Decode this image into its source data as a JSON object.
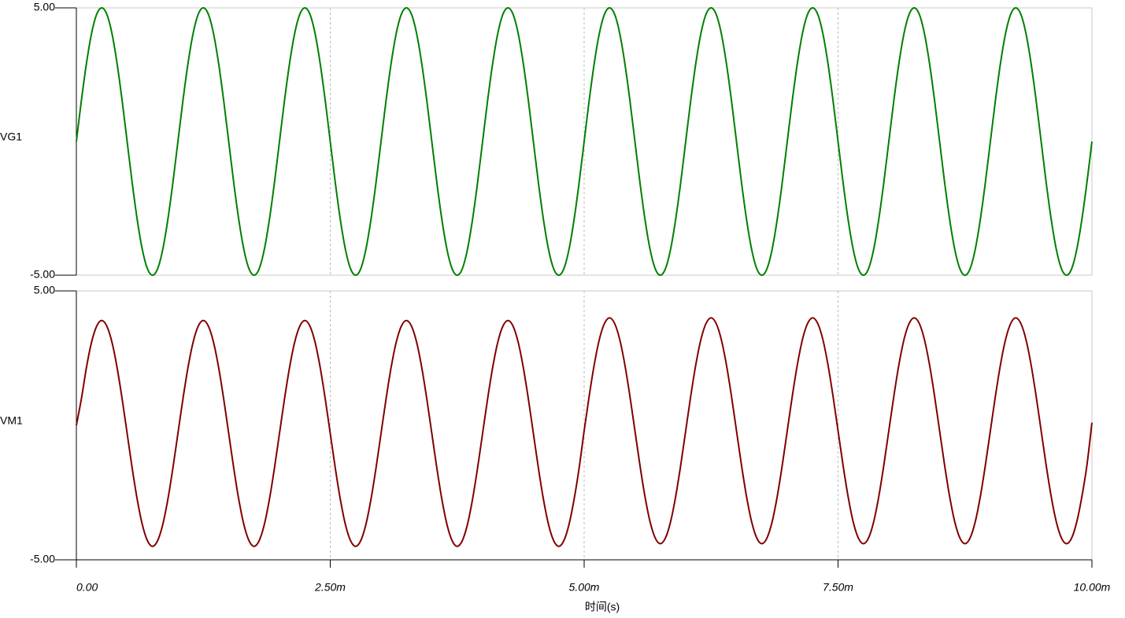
{
  "chart_data": [
    {
      "type": "line",
      "x": [
        0,
        5e-05,
        0.0001,
        0.00015,
        0.0002,
        0.00025,
        0.0003,
        0.00035,
        0.0004,
        0.00045,
        0.0005,
        0.00055,
        0.0006,
        0.00065,
        0.0007,
        0.00075,
        0.0008,
        0.00085,
        0.0009,
        0.00095,
        0.001,
        0.00105,
        0.0011,
        0.00115,
        0.0012,
        0.00125,
        0.0013,
        0.00135,
        0.0014,
        0.00145,
        0.0015,
        0.00155,
        0.0016,
        0.00165,
        0.0017,
        0.00175,
        0.0018,
        0.00185,
        0.0019,
        0.00195,
        0.002,
        0.00205,
        0.0021,
        0.00215,
        0.0022,
        0.00225,
        0.0023,
        0.00235,
        0.0024,
        0.00245,
        0.0025,
        0.00255,
        0.0026,
        0.00265,
        0.0027,
        0.00275,
        0.0028,
        0.00285,
        0.0029,
        0.00295,
        0.003,
        0.00305,
        0.0031,
        0.00315,
        0.0032,
        0.00325,
        0.0033,
        0.00335,
        0.0034,
        0.00345,
        0.0035,
        0.00355,
        0.0036,
        0.00365,
        0.0037,
        0.00375,
        0.0038,
        0.00385,
        0.0039,
        0.00395,
        0.004,
        0.00405,
        0.0041,
        0.00415,
        0.0042,
        0.00425,
        0.0043,
        0.00435,
        0.0044,
        0.00445,
        0.0045,
        0.00455,
        0.0046,
        0.00465,
        0.0047,
        0.00475,
        0.0048,
        0.00485,
        0.0049,
        0.00495,
        0.005,
        0.00505,
        0.0051,
        0.00515,
        0.0052,
        0.00525,
        0.0053,
        0.00535,
        0.0054,
        0.00545,
        0.0055,
        0.00555,
        0.0056,
        0.00565,
        0.0057,
        0.00575,
        0.0058,
        0.00585,
        0.0059,
        0.00595,
        0.006,
        0.00605,
        0.0061,
        0.00615,
        0.0062,
        0.00625,
        0.0063,
        0.00635,
        0.0064,
        0.00645,
        0.0065,
        0.00655,
        0.0066,
        0.00665,
        0.0067,
        0.00675,
        0.0068,
        0.00685,
        0.0069,
        0.00695,
        0.007,
        0.00705,
        0.0071,
        0.00715,
        0.0072,
        0.00725,
        0.0073,
        0.00735,
        0.0074,
        0.00745,
        0.0075,
        0.00755,
        0.0076,
        0.00765,
        0.0077,
        0.00775,
        0.0078,
        0.00785,
        0.0079,
        0.00795,
        0.008,
        0.00805,
        0.0081,
        0.00815,
        0.0082,
        0.00825,
        0.0083,
        0.00835,
        0.0084,
        0.00845,
        0.0085,
        0.00855,
        0.0086,
        0.00865,
        0.0087,
        0.00875,
        0.0088,
        0.00885,
        0.0089,
        0.00895,
        0.009,
        0.00905,
        0.0091,
        0.00915,
        0.0092,
        0.00925,
        0.0093,
        0.00935,
        0.0094,
        0.00945,
        0.0095,
        0.00955,
        0.0096,
        0.00965,
        0.0097,
        0.00975,
        0.0098,
        0.00985,
        0.0099,
        0.00995,
        0.01
      ],
      "series": [
        {
          "name": "VG1",
          "color": "#008000",
          "values": [
            0,
            1.55,
            2.94,
            4.05,
            4.76,
            5,
            4.76,
            4.05,
            2.94,
            1.55,
            0,
            -1.55,
            -2.94,
            -4.05,
            -4.76,
            -5,
            -4.76,
            -4.05,
            -2.94,
            -1.55,
            0,
            1.55,
            2.94,
            4.05,
            4.76,
            5,
            4.76,
            4.05,
            2.94,
            1.55,
            0,
            -1.55,
            -2.94,
            -4.05,
            -4.76,
            -5,
            -4.76,
            -4.05,
            -2.94,
            -1.55,
            0,
            1.55,
            2.94,
            4.05,
            4.76,
            5,
            4.76,
            4.05,
            2.94,
            1.55,
            0,
            -1.55,
            -2.94,
            -4.05,
            -4.76,
            -5,
            -4.76,
            -4.05,
            -2.94,
            -1.55,
            0,
            1.55,
            2.94,
            4.05,
            4.76,
            5,
            4.76,
            4.05,
            2.94,
            1.55,
            0,
            -1.55,
            -2.94,
            -4.05,
            -4.76,
            -5,
            -4.76,
            -4.05,
            -2.94,
            -1.55,
            0,
            1.55,
            2.94,
            4.05,
            4.76,
            5,
            4.76,
            4.05,
            2.94,
            1.55,
            0,
            -1.55,
            -2.94,
            -4.05,
            -4.76,
            -5,
            -4.76,
            -4.05,
            -2.94,
            -1.55,
            0,
            1.55,
            2.94,
            4.05,
            4.76,
            5,
            4.76,
            4.05,
            2.94,
            1.55,
            0,
            -1.55,
            -2.94,
            -4.05,
            -4.76,
            -5,
            -4.76,
            -4.05,
            -2.94,
            -1.55,
            0,
            1.55,
            2.94,
            4.05,
            4.76,
            5,
            4.76,
            4.05,
            2.94,
            1.55,
            0,
            -1.55,
            -2.94,
            -4.05,
            -4.76,
            -5,
            -4.76,
            -4.05,
            -2.94,
            -1.55,
            0,
            1.55,
            2.94,
            4.05,
            4.76,
            5,
            4.76,
            4.05,
            2.94,
            1.55,
            0,
            -1.55,
            -2.94,
            -4.05,
            -4.76,
            -5,
            -4.76,
            -4.05,
            -2.94,
            -1.55,
            0,
            1.55,
            2.94,
            4.05,
            4.76,
            5,
            4.76,
            4.05,
            2.94,
            1.55,
            0,
            -1.55,
            -2.94,
            -4.05,
            -4.76,
            -5,
            -4.76,
            -4.05,
            -2.94,
            -1.55,
            0,
            1.55,
            2.94,
            4.05,
            4.76,
            5,
            4.76,
            4.05,
            2.94,
            1.55,
            0,
            -1.55,
            -2.94,
            -4.05,
            -4.76,
            -5,
            -4.76,
            -4.05,
            -2.94,
            -1.55,
            0
          ]
        }
      ],
      "xlim": [
        0,
        0.01
      ],
      "xticks": [
        0.0025,
        0.005,
        0.0075
      ],
      "ylim": [
        -5,
        5
      ],
      "yticks": [
        {
          "value": 5,
          "label": "5.00"
        },
        {
          "value": -5,
          "label": "-5.00"
        }
      ]
    },
    {
      "type": "line",
      "x": [
        0,
        5e-05,
        0.0001,
        0.00015,
        0.0002,
        0.00025,
        0.0003,
        0.00035,
        0.0004,
        0.00045,
        0.0005,
        0.00055,
        0.0006,
        0.00065,
        0.0007,
        0.00075,
        0.0008,
        0.00085,
        0.0009,
        0.00095,
        0.001,
        0.00105,
        0.0011,
        0.00115,
        0.0012,
        0.00125,
        0.0013,
        0.00135,
        0.0014,
        0.00145,
        0.0015,
        0.00155,
        0.0016,
        0.00165,
        0.0017,
        0.00175,
        0.0018,
        0.00185,
        0.0019,
        0.00195,
        0.002,
        0.00205,
        0.0021,
        0.00215,
        0.0022,
        0.00225,
        0.0023,
        0.00235,
        0.0024,
        0.00245,
        0.0025,
        0.00255,
        0.0026,
        0.00265,
        0.0027,
        0.00275,
        0.0028,
        0.00285,
        0.0029,
        0.00295,
        0.003,
        0.00305,
        0.0031,
        0.00315,
        0.0032,
        0.00325,
        0.0033,
        0.00335,
        0.0034,
        0.00345,
        0.0035,
        0.00355,
        0.0036,
        0.00365,
        0.0037,
        0.00375,
        0.0038,
        0.00385,
        0.0039,
        0.00395,
        0.004,
        0.00405,
        0.0041,
        0.00415,
        0.0042,
        0.00425,
        0.0043,
        0.00435,
        0.0044,
        0.00445,
        0.0045,
        0.00455,
        0.0046,
        0.00465,
        0.0047,
        0.00475,
        0.0048,
        0.00485,
        0.0049,
        0.00495,
        0.005,
        0.00505,
        0.0051,
        0.00515,
        0.0052,
        0.00525,
        0.0053,
        0.00535,
        0.0054,
        0.00545,
        0.0055,
        0.00555,
        0.0056,
        0.00565,
        0.0057,
        0.00575,
        0.0058,
        0.00585,
        0.0059,
        0.00595,
        0.006,
        0.00605,
        0.0061,
        0.00615,
        0.0062,
        0.00625,
        0.0063,
        0.00635,
        0.0064,
        0.00645,
        0.0065,
        0.00655,
        0.0066,
        0.00665,
        0.0067,
        0.00675,
        0.0068,
        0.00685,
        0.0069,
        0.00695,
        0.007,
        0.00705,
        0.0071,
        0.00715,
        0.0072,
        0.00725,
        0.0073,
        0.00735,
        0.0074,
        0.00745,
        0.0075,
        0.00755,
        0.0076,
        0.00765,
        0.0077,
        0.00775,
        0.0078,
        0.00785,
        0.0079,
        0.00795,
        0.008,
        0.00805,
        0.0081,
        0.00815,
        0.0082,
        0.00825,
        0.0083,
        0.00835,
        0.0084,
        0.00845,
        0.0085,
        0.00855,
        0.0086,
        0.00865,
        0.0087,
        0.00875,
        0.0088,
        0.00885,
        0.0089,
        0.00895,
        0.009,
        0.00905,
        0.0091,
        0.00915,
        0.0092,
        0.00925,
        0.0093,
        0.00935,
        0.0094,
        0.00945,
        0.0095,
        0.00955,
        0.0096,
        0.00965,
        0.0097,
        0.00975,
        0.0098,
        0.00985,
        0.0099,
        0.00995,
        0.01
      ],
      "series": [
        {
          "name": "VM1",
          "color": "#800000",
          "values": [
            0,
            1.0,
            2.17,
            3.1,
            3.69,
            3.9,
            3.69,
            3.1,
            2.17,
            1.0,
            -0.3,
            -1.6,
            -2.77,
            -3.7,
            -4.29,
            -4.5,
            -4.29,
            -3.7,
            -2.77,
            -1.6,
            -0.3,
            1.0,
            2.17,
            3.1,
            3.69,
            3.9,
            3.69,
            3.1,
            2.17,
            1.0,
            -0.3,
            -1.6,
            -2.77,
            -3.7,
            -4.29,
            -4.5,
            -4.29,
            -3.7,
            -2.77,
            -1.6,
            -0.3,
            1.0,
            2.17,
            3.1,
            3.69,
            3.9,
            3.69,
            3.1,
            2.17,
            1.0,
            -0.3,
            -1.6,
            -2.77,
            -3.7,
            -4.29,
            -4.5,
            -4.29,
            -3.7,
            -2.77,
            -1.6,
            -0.3,
            1.0,
            2.17,
            3.1,
            3.69,
            3.9,
            3.69,
            3.1,
            2.17,
            1.0,
            -0.3,
            -1.6,
            -2.77,
            -3.7,
            -4.29,
            -4.5,
            -4.29,
            -3.7,
            -2.77,
            -1.6,
            -0.3,
            1.0,
            2.17,
            3.1,
            3.69,
            3.9,
            3.69,
            3.1,
            2.17,
            1.0,
            -0.3,
            -1.6,
            -2.77,
            -3.7,
            -4.29,
            -4.5,
            -4.29,
            -3.7,
            -2.77,
            -1.6,
            -0.2,
            1.1,
            2.27,
            3.2,
            3.79,
            4.0,
            3.79,
            3.2,
            2.27,
            1.1,
            -0.2,
            -1.5,
            -2.67,
            -3.6,
            -4.19,
            -4.4,
            -4.19,
            -3.6,
            -2.67,
            -1.5,
            -0.2,
            1.1,
            2.27,
            3.2,
            3.79,
            4.0,
            3.79,
            3.2,
            2.27,
            1.1,
            -0.2,
            -1.5,
            -2.67,
            -3.6,
            -4.19,
            -4.4,
            -4.19,
            -3.6,
            -2.67,
            -1.5,
            -0.2,
            1.1,
            2.27,
            3.2,
            3.79,
            4.0,
            3.79,
            3.2,
            2.27,
            1.1,
            -0.2,
            -1.5,
            -2.67,
            -3.6,
            -4.19,
            -4.4,
            -4.19,
            -3.6,
            -2.67,
            -1.5,
            -0.2,
            1.1,
            2.27,
            3.2,
            3.79,
            4.0,
            3.79,
            3.2,
            2.27,
            1.1,
            -0.2,
            -1.5,
            -2.67,
            -3.6,
            -4.19,
            -4.4,
            -4.19,
            -3.6,
            -2.67,
            -1.5,
            -0.2,
            1.1,
            2.27,
            3.2,
            3.79,
            4.0,
            3.79,
            3.2,
            2.27,
            1.1,
            -0.2,
            -1.5,
            -2.67,
            -3.6,
            -4.19,
            -4.4,
            -4.19,
            -3.6,
            -2.67,
            -1.5,
            0.1
          ]
        }
      ],
      "xlim": [
        0,
        0.01
      ],
      "xticks": [
        {
          "value": 0,
          "label": "0.00"
        },
        {
          "value": 0.0025,
          "label": "2.50m"
        },
        {
          "value": 0.005,
          "label": "5.00m"
        },
        {
          "value": 0.0075,
          "label": "7.50m"
        },
        {
          "value": 0.01,
          "label": "10.00m"
        }
      ],
      "xlabel": "时间(s)",
      "ylim": [
        -5,
        5
      ],
      "yticks": [
        {
          "value": 5,
          "label": "5.00"
        },
        {
          "value": -5,
          "label": "-5.00"
        }
      ]
    }
  ]
}
